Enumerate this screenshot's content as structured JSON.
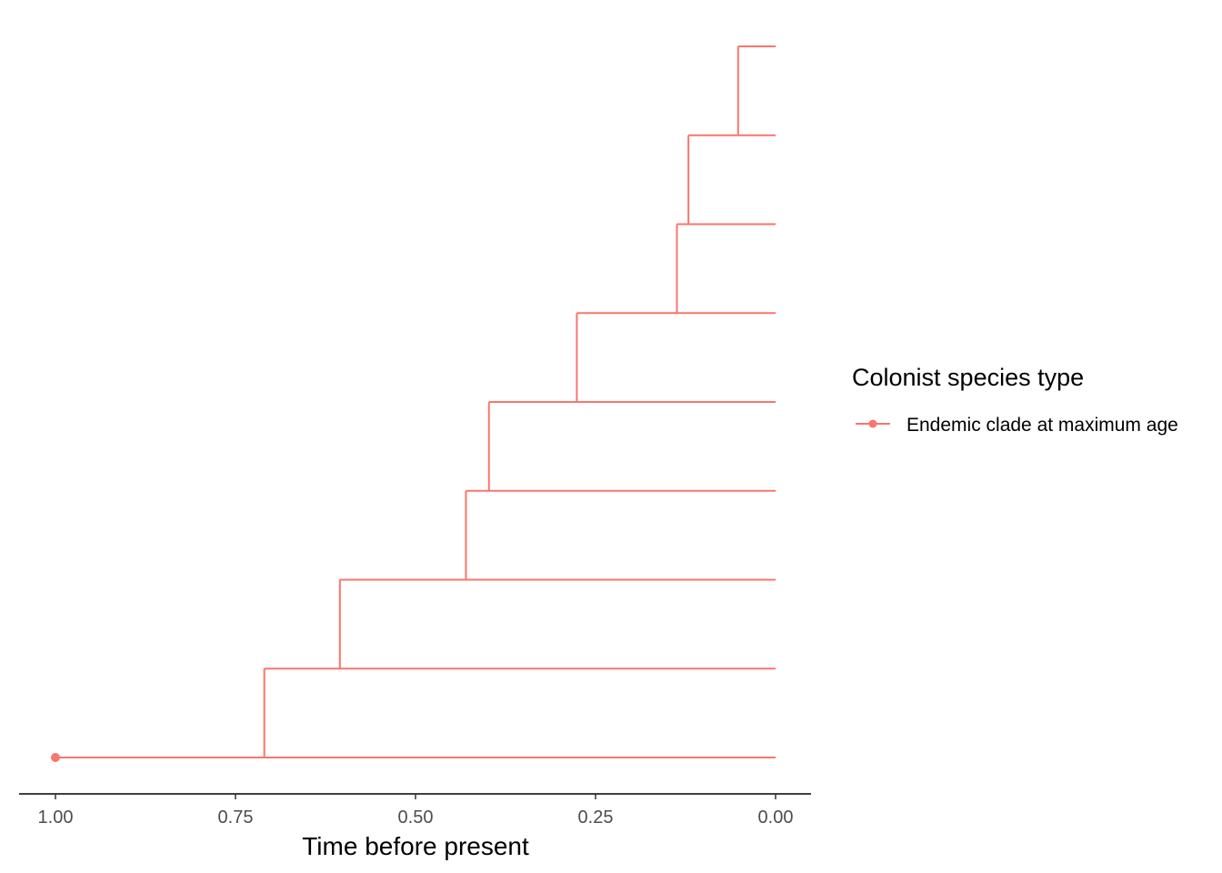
{
  "chart_data": {
    "type": "line",
    "chart_kind": "phylogenetic-tree",
    "xlabel": "Time before present",
    "x_reversed": true,
    "xlim": [
      1.0,
      0.0
    ],
    "x_ticks": [
      {
        "value": 1.0,
        "label": "1.00"
      },
      {
        "value": 0.75,
        "label": "0.75"
      },
      {
        "value": 0.5,
        "label": "0.50"
      },
      {
        "value": 0.25,
        "label": "0.25"
      },
      {
        "value": 0.0,
        "label": "0.00"
      }
    ],
    "grid": false,
    "series": [
      {
        "name": "Endemic clade at maximum age",
        "color": "#F8766D"
      }
    ],
    "colonisation_point": {
      "time": 1.0,
      "tip": 1
    },
    "tips": [
      1,
      2,
      3,
      4,
      5,
      6,
      7,
      8,
      9
    ],
    "branch_times": [
      {
        "time": 0.71,
        "tips": [
          1,
          2
        ]
      },
      {
        "time": 0.605,
        "tips": [
          2,
          3
        ]
      },
      {
        "time": 0.43,
        "tips": [
          3,
          4
        ]
      },
      {
        "time": 0.398,
        "tips": [
          4,
          5
        ]
      },
      {
        "time": 0.276,
        "tips": [
          5,
          6
        ]
      },
      {
        "time": 0.137,
        "tips": [
          6,
          7
        ]
      },
      {
        "time": 0.121,
        "tips": [
          7,
          8
        ]
      },
      {
        "time": 0.052,
        "tips": [
          8,
          9
        ]
      }
    ]
  },
  "legend": {
    "title": "Colonist species type",
    "position": "right",
    "items": [
      {
        "label": "Endemic clade at maximum age",
        "color": "#F8766D",
        "icon": "line-point-icon"
      }
    ]
  }
}
